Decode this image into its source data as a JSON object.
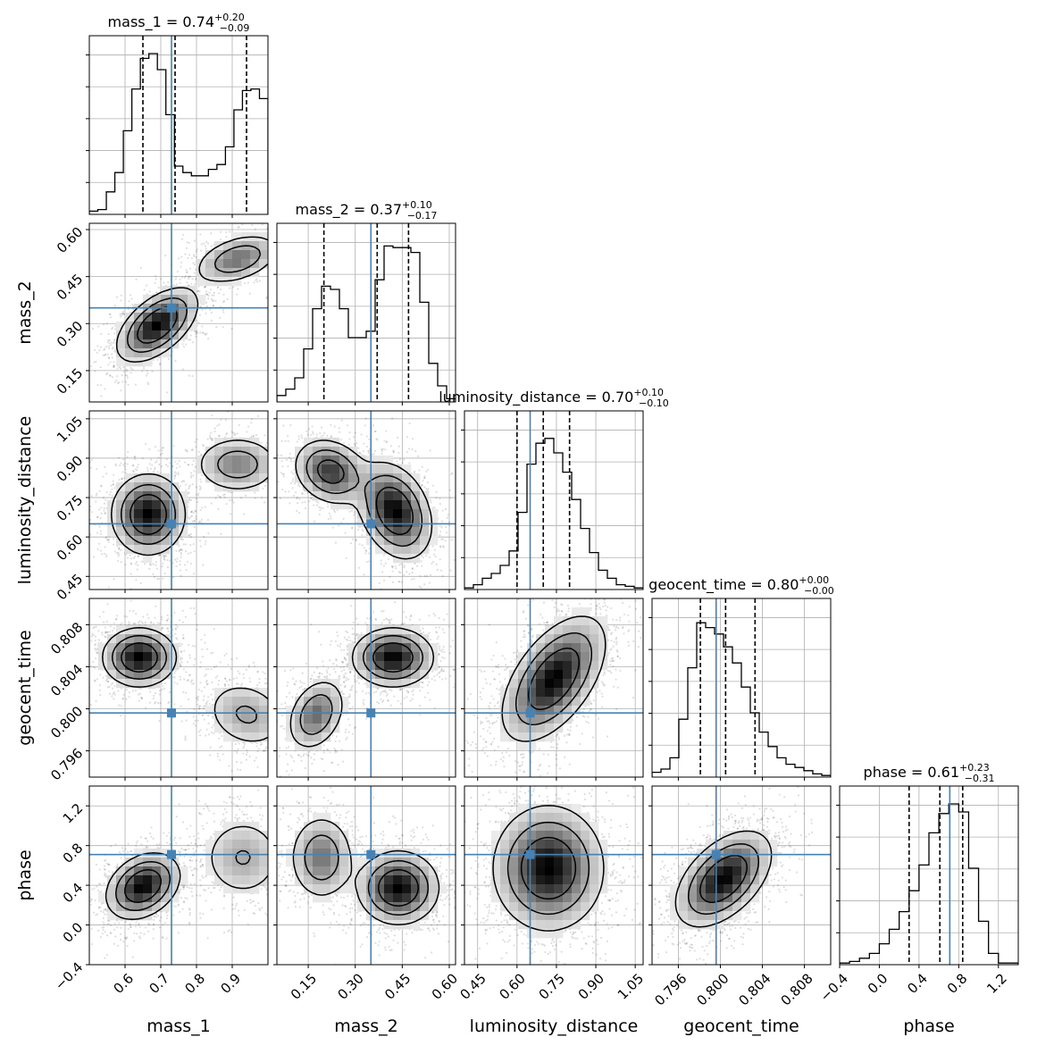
{
  "chart_data": {
    "type": "corner",
    "parameters": [
      "mass_1",
      "mass_2",
      "luminosity_distance",
      "geocent_time",
      "phase"
    ],
    "axis_labels": [
      "mass_1",
      "mass_2",
      "luminosity_distance",
      "geocent_time",
      "phase"
    ],
    "ranges": [
      [
        0.5,
        1.0
      ],
      [
        0.05,
        0.62
      ],
      [
        0.4,
        1.08
      ],
      [
        0.7935,
        0.8105
      ],
      [
        -0.4,
        1.4
      ]
    ],
    "ticks": [
      {
        "values": [
          0.6,
          0.7,
          0.8,
          0.9
        ],
        "labels": [
          "0.6",
          "0.7",
          "0.8",
          "0.9"
        ]
      },
      {
        "values": [
          0.15,
          0.3,
          0.45,
          0.6
        ],
        "labels": [
          "0.15",
          "0.30",
          "0.45",
          "0.60"
        ]
      },
      {
        "values": [
          0.45,
          0.6,
          0.75,
          0.9,
          1.05
        ],
        "labels": [
          "0.45",
          "0.60",
          "0.75",
          "0.90",
          "1.05"
        ]
      },
      {
        "values": [
          0.796,
          0.8,
          0.804,
          0.808
        ],
        "labels": [
          "0.796",
          "0.800",
          "0.804",
          "0.808"
        ]
      },
      {
        "values": [
          -0.4,
          0.0,
          0.4,
          0.8,
          1.2
        ],
        "labels": [
          "−0.4",
          "0.0",
          "0.4",
          "0.8",
          "1.2"
        ]
      }
    ],
    "truths": [
      0.73,
      0.35,
      0.65,
      0.7996,
      0.71
    ],
    "titles": [
      {
        "name": "mass_1",
        "median": "0.74",
        "plus": "+0.20",
        "minus": "−0.09"
      },
      {
        "name": "mass_2",
        "median": "0.37",
        "plus": "+0.10",
        "minus": "−0.17"
      },
      {
        "name": "luminosity_distance",
        "median": "0.70",
        "plus": "+0.10",
        "minus": "−0.10"
      },
      {
        "name": "geocent_time",
        "median": "0.80",
        "plus": "+0.00",
        "minus": "−0.00"
      },
      {
        "name": "phase",
        "median": "0.61",
        "plus": "+0.23",
        "minus": "−0.31"
      }
    ],
    "quantiles": [
      [
        0.65,
        0.74,
        0.94
      ],
      [
        0.2,
        0.37,
        0.47
      ],
      [
        0.6,
        0.7,
        0.8
      ],
      [
        0.7981,
        0.8005,
        0.8033
      ],
      [
        0.3,
        0.61,
        0.84
      ]
    ],
    "histograms": [
      [
        0.02,
        0.03,
        0.14,
        0.26,
        0.52,
        0.78,
        0.97,
        1.0,
        0.9,
        0.62,
        0.3,
        0.26,
        0.24,
        0.24,
        0.28,
        0.31,
        0.42,
        0.65,
        0.77,
        0.78,
        0.72
      ],
      [
        0.04,
        0.08,
        0.15,
        0.33,
        0.58,
        0.72,
        0.7,
        0.58,
        0.4,
        0.4,
        0.44,
        0.76,
        0.97,
        0.96,
        0.96,
        0.93,
        0.62,
        0.24,
        0.1,
        0.02
      ],
      [
        0.01,
        0.03,
        0.07,
        0.1,
        0.15,
        0.24,
        0.48,
        0.78,
        0.91,
        0.94,
        0.85,
        0.73,
        0.56,
        0.38,
        0.23,
        0.12,
        0.07,
        0.03,
        0.02,
        0.01
      ],
      [
        0.03,
        0.05,
        0.12,
        0.36,
        0.68,
        0.96,
        0.93,
        0.89,
        0.81,
        0.71,
        0.56,
        0.4,
        0.28,
        0.19,
        0.12,
        0.08,
        0.06,
        0.04,
        0.02,
        0.01
      ],
      [
        0.01,
        0.02,
        0.04,
        0.07,
        0.13,
        0.22,
        0.33,
        0.46,
        0.62,
        0.82,
        0.94,
        1.0,
        0.95,
        0.6,
        0.27,
        0.07,
        0.01,
        0.01
      ]
    ]
  }
}
